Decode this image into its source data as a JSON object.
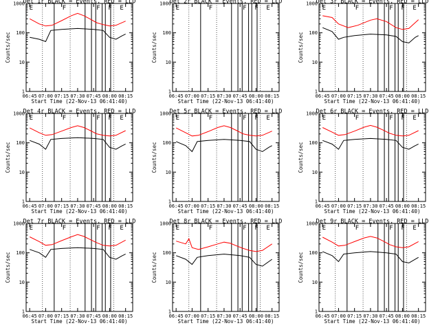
{
  "chart_data": {
    "type": "line",
    "panels": [
      {
        "title": "Det 1r BLACK = Events, RED = LLD",
        "xlabel": "Start Time (22-Nov-13 06:41:40)",
        "ylabel": "Counts/sec",
        "xticks": [
          "06:45",
          "07:00",
          "07:15",
          "07:30",
          "07:45",
          "08:00",
          "08:15"
        ],
        "yticks": [
          "1",
          "10",
          "100",
          "1000"
        ],
        "flags": [
          "E",
          "F",
          "F",
          "F",
          "E"
        ],
        "series": [
          {
            "color": "#ff0000",
            "x": [
              6.75,
              6.9,
              7.0,
              7.1,
              7.25,
              7.4,
              7.5,
              7.6,
              7.7,
              7.8,
              7.9,
              8.0,
              8.1,
              8.25
            ],
            "values": [
              300,
              200,
              170,
              180,
              260,
              380,
              460,
              380,
              290,
              220,
              190,
              170,
              180,
              250
            ]
          },
          {
            "color": "#000000",
            "x": [
              6.75,
              6.9,
              7.0,
              7.08,
              7.25,
              7.5,
              7.75,
              7.9,
              8.0,
              8.1,
              8.2,
              8.25
            ],
            "values": [
              70,
              60,
              50,
              120,
              130,
              140,
              130,
              120,
              70,
              60,
              80,
              90
            ]
          }
        ]
      },
      {
        "title": "Det 2r BLACK = Events, RED = LLD",
        "xlabel": "Start Time (22-Nov-13 06:41:40)",
        "ylabel": "Counts/sec",
        "xticks": [
          "06:45",
          "07:00",
          "07:15",
          "07:30",
          "07:45",
          "08:00",
          "08:15"
        ],
        "yticks": [
          "1",
          "10",
          "100",
          "1000"
        ],
        "flags": [
          "E",
          "F",
          "F",
          "F",
          "E"
        ],
        "series": []
      },
      {
        "title": "Det 3r BLACK = Events, RED = LLD",
        "xlabel": "Start Time (22-Nov-13 06:41:40)",
        "ylabel": "Counts/sec",
        "xticks": [
          "06:45",
          "07:00",
          "07:15",
          "07:30",
          "07:45",
          "08:00",
          "08:15"
        ],
        "yticks": [
          "1",
          "10",
          "100",
          "1000"
        ],
        "flags": [
          "E",
          "F",
          "F",
          "F",
          "E"
        ],
        "series": [
          {
            "color": "#ff0000",
            "x": [
              6.75,
              6.9,
              7.0,
              7.15,
              7.3,
              7.5,
              7.6,
              7.75,
              7.9,
              8.0,
              8.1,
              8.25
            ],
            "values": [
              380,
              330,
              200,
              150,
              180,
              270,
              300,
              240,
              150,
              130,
              140,
              280
            ]
          },
          {
            "color": "#000000",
            "x": [
              6.75,
              6.9,
              7.0,
              7.08,
              7.25,
              7.5,
              7.75,
              7.9,
              8.0,
              8.1,
              8.2,
              8.25
            ],
            "values": [
              150,
              110,
              60,
              70,
              80,
              90,
              85,
              75,
              50,
              45,
              70,
              80
            ]
          }
        ]
      },
      {
        "title": "Det 4r BLACK = Events, RED = LLD",
        "xlabel": "Start Time (22-Nov-13 06:41:40)",
        "ylabel": "Counts/sec",
        "xticks": [
          "06:45",
          "07:00",
          "07:15",
          "07:30",
          "07:45",
          "08:00",
          "08:15"
        ],
        "yticks": [
          "1",
          "10",
          "100",
          "1000"
        ],
        "flags": [
          "E",
          "F",
          "F",
          "F",
          "E"
        ],
        "series": [
          {
            "color": "#ff0000",
            "x": [
              6.75,
              6.9,
              7.0,
              7.1,
              7.25,
              7.4,
              7.5,
              7.6,
              7.7,
              7.8,
              7.9,
              8.0,
              8.1,
              8.25
            ],
            "values": [
              320,
              220,
              180,
              190,
              250,
              330,
              380,
              330,
              260,
              200,
              180,
              170,
              180,
              260
            ]
          },
          {
            "color": "#000000",
            "x": [
              6.75,
              6.9,
              7.0,
              7.08,
              7.25,
              7.5,
              7.75,
              7.9,
              8.0,
              8.1,
              8.2,
              8.25
            ],
            "values": [
              120,
              90,
              60,
              130,
              140,
              150,
              140,
              130,
              70,
              60,
              80,
              90
            ]
          }
        ]
      },
      {
        "title": "Det 5r BLACK = Events, RED = LLD",
        "xlabel": "Start Time (22-Nov-13 06:41:40)",
        "ylabel": "Counts/sec",
        "xticks": [
          "06:45",
          "07:00",
          "07:15",
          "07:30",
          "07:45",
          "08:00",
          "08:15"
        ],
        "yticks": [
          "1",
          "10",
          "100",
          "1000"
        ],
        "flags": [
          "E",
          "F",
          "F",
          "F",
          "E"
        ],
        "series": [
          {
            "color": "#ff0000",
            "x": [
              6.75,
              6.9,
              7.0,
              7.1,
              7.25,
              7.4,
              7.5,
              7.6,
              7.7,
              7.8,
              7.9,
              8.0,
              8.1,
              8.25
            ],
            "values": [
              320,
              220,
              170,
              180,
              240,
              330,
              380,
              330,
              260,
              200,
              180,
              170,
              180,
              250
            ]
          },
          {
            "color": "#000000",
            "x": [
              6.75,
              6.9,
              7.0,
              7.08,
              7.25,
              7.5,
              7.75,
              7.9,
              8.0,
              8.1,
              8.2,
              8.25
            ],
            "values": [
              110,
              80,
              50,
              110,
              120,
              130,
              120,
              110,
              60,
              50,
              70,
              80
            ]
          }
        ]
      },
      {
        "title": "Det 6r BLACK = Events, RED = LLD",
        "xlabel": "Start Time (22-Nov-13 06:41:40)",
        "ylabel": "Counts/sec",
        "xticks": [
          "06:45",
          "07:00",
          "07:15",
          "07:30",
          "07:45",
          "08:00",
          "08:15"
        ],
        "yticks": [
          "1",
          "10",
          "100",
          "1000"
        ],
        "flags": [
          "E",
          "F",
          "F",
          "F",
          "E"
        ],
        "series": [
          {
            "color": "#ff0000",
            "x": [
              6.75,
              6.9,
              7.0,
              7.1,
              7.25,
              7.4,
              7.5,
              7.6,
              7.7,
              7.8,
              7.9,
              8.0,
              8.1,
              8.25
            ],
            "values": [
              330,
              230,
              180,
              190,
              250,
              340,
              390,
              340,
              270,
              210,
              180,
              170,
              180,
              260
            ]
          },
          {
            "color": "#000000",
            "x": [
              6.75,
              6.9,
              7.0,
              7.08,
              7.25,
              7.5,
              7.75,
              7.9,
              8.0,
              8.1,
              8.2,
              8.25
            ],
            "values": [
              120,
              90,
              60,
              120,
              130,
              140,
              130,
              120,
              70,
              60,
              80,
              90
            ]
          }
        ]
      },
      {
        "title": "Det 7r BLACK = Events, RED = LLD",
        "xlabel": "Start Time (22-Nov-13 06:41:40)",
        "ylabel": "Counts/sec",
        "xticks": [
          "06:45",
          "07:00",
          "07:15",
          "07:30",
          "07:45",
          "08:00",
          "08:15"
        ],
        "yticks": [
          "1",
          "10",
          "100",
          "1000"
        ],
        "flags": [
          "E",
          "F",
          "F",
          "F",
          "E"
        ],
        "series": [
          {
            "color": "#ff0000",
            "x": [
              6.75,
              6.9,
              7.0,
              7.1,
              7.25,
              7.4,
              7.5,
              7.6,
              7.7,
              7.8,
              7.9,
              8.0,
              8.1,
              8.25
            ],
            "values": [
              350,
              240,
              180,
              190,
              260,
              350,
              420,
              360,
              280,
              220,
              180,
              170,
              180,
              270
            ]
          },
          {
            "color": "#000000",
            "x": [
              6.75,
              6.9,
              7.0,
              7.08,
              7.25,
              7.5,
              7.75,
              7.9,
              8.0,
              8.1,
              8.2,
              8.25
            ],
            "values": [
              130,
              100,
              70,
              130,
              140,
              150,
              140,
              130,
              70,
              60,
              80,
              90
            ]
          }
        ]
      },
      {
        "title": "Det 8r BLACK = Events, RED = LLD",
        "xlabel": "Start Time (22-Nov-13 06:41:40)",
        "ylabel": "Counts/sec",
        "xticks": [
          "06:45",
          "07:00",
          "07:15",
          "07:30",
          "07:45",
          "08:00",
          "08:15"
        ],
        "yticks": [
          "1",
          "10",
          "100",
          "1000"
        ],
        "flags": [
          "E",
          "F",
          "F",
          "F",
          "E"
        ],
        "series": [
          {
            "color": "#ff0000",
            "x": [
              6.75,
              6.9,
              6.95,
              7.0,
              7.1,
              7.25,
              7.4,
              7.5,
              7.6,
              7.7,
              7.8,
              7.9,
              8.0,
              8.1,
              8.25
            ],
            "values": [
              250,
              200,
              300,
              150,
              130,
              160,
              200,
              230,
              210,
              170,
              140,
              120,
              110,
              120,
              200
            ]
          },
          {
            "color": "#000000",
            "x": [
              6.75,
              6.9,
              7.0,
              7.08,
              7.25,
              7.5,
              7.75,
              7.9,
              8.0,
              8.1,
              8.2,
              8.25
            ],
            "values": [
              80,
              60,
              40,
              70,
              80,
              90,
              80,
              70,
              40,
              35,
              50,
              60
            ]
          }
        ]
      },
      {
        "title": "Det 9r BLACK = Events, RED = LLD",
        "xlabel": "Start Time (22-Nov-13 06:41:40)",
        "ylabel": "Counts/sec",
        "xticks": [
          "06:45",
          "07:00",
          "07:15",
          "07:30",
          "07:45",
          "08:00",
          "08:15"
        ],
        "yticks": [
          "1",
          "10",
          "100",
          "1000"
        ],
        "flags": [
          "E",
          "F",
          "F",
          "F",
          "E"
        ],
        "series": [
          {
            "color": "#ff0000",
            "x": [
              6.75,
              6.9,
              7.0,
              7.1,
              7.25,
              7.4,
              7.5,
              7.6,
              7.7,
              7.8,
              7.9,
              8.0,
              8.1,
              8.25
            ],
            "values": [
              340,
              230,
              170,
              180,
              240,
              320,
              360,
              320,
              250,
              190,
              160,
              150,
              160,
              240
            ]
          },
          {
            "color": "#000000",
            "x": [
              6.75,
              6.9,
              7.0,
              7.08,
              7.25,
              7.5,
              7.75,
              7.9,
              8.0,
              8.1,
              8.2,
              8.25
            ],
            "values": [
              110,
              80,
              50,
              90,
              100,
              110,
              100,
              90,
              50,
              45,
              60,
              70
            ]
          }
        ]
      }
    ],
    "xlim": [
      "06:41:40",
      "08:21:40"
    ],
    "ylim": [
      1,
      1000
    ],
    "yscale": "log",
    "solid_event_lines": [
      "07:08",
      "07:37",
      "07:43",
      "07:47",
      "07:53",
      "07:56",
      "08:01"
    ],
    "dotted_event_lines": [
      "06:57",
      "07:23",
      "08:04"
    ]
  }
}
